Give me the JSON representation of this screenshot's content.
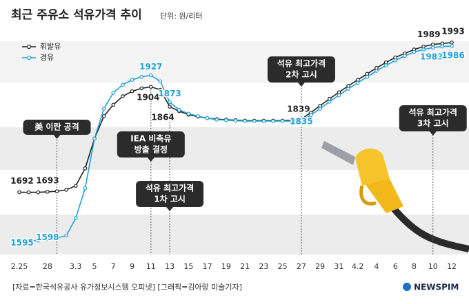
{
  "chart_data": {
    "type": "line",
    "title": "최근 주유소 석유가격 추이",
    "subtitle": "단위: 원/리터",
    "source": "[자료=한국석유공사 유가정보시스템 오피넷] [그래픽=김아랑 미술기자]",
    "brand": "NEWSPIM",
    "categories": [
      "2.25",
      null,
      null,
      "28",
      null,
      null,
      "3.3",
      null,
      "5",
      null,
      "7",
      null,
      "9",
      null,
      "11",
      null,
      "13",
      null,
      "15",
      null,
      "17",
      null,
      "19",
      null,
      "21",
      null,
      "23",
      null,
      "25",
      null,
      "27",
      null,
      "29",
      null,
      "31",
      null,
      "4.2",
      null,
      "4",
      null,
      "6",
      null,
      "8",
      null,
      "10",
      null,
      "12"
    ],
    "ylim": [
      1567,
      2037
    ],
    "series": [
      {
        "name": "휘발유",
        "color": "#222222",
        "values": [
          1692,
          1692,
          1692,
          1693,
          1694,
          1697,
          1705,
          1740,
          1800,
          1845,
          1868,
          1885,
          1895,
          1901,
          1904,
          1898,
          1864,
          1855,
          1848,
          1844,
          1841,
          1839,
          1838,
          1837,
          1836,
          1836,
          1836,
          1836,
          1836,
          1837,
          1839,
          1852,
          1866,
          1880,
          1893,
          1906,
          1918,
          1930,
          1942,
          1953,
          1963,
          1971,
          1979,
          1985,
          1989,
          1991,
          1993
        ]
      },
      {
        "name": "경유",
        "color": "#1ea0d8",
        "values": [
          1595,
          1595,
          1595,
          1598,
          1600,
          1605,
          1640,
          1700,
          1800,
          1860,
          1892,
          1908,
          1918,
          1924,
          1927,
          1915,
          1873,
          1858,
          1850,
          1845,
          1841,
          1838,
          1837,
          1836,
          1835,
          1835,
          1835,
          1835,
          1835,
          1835,
          1835,
          1847,
          1860,
          1874,
          1887,
          1900,
          1912,
          1924,
          1936,
          1947,
          1957,
          1966,
          1974,
          1979,
          1983,
          1985,
          1986
        ]
      }
    ],
    "annotations": [
      {
        "text": [
          "美 이란 공격"
        ]
      },
      {
        "text": [
          "IEA 비축유",
          "방출 결정"
        ]
      },
      {
        "text": [
          "석유 최고가격",
          "1차 고시"
        ]
      },
      {
        "text": [
          "석유 최고가격",
          "2차 고시"
        ]
      },
      {
        "text": [
          "석유 최고가격",
          "3차 고시"
        ]
      }
    ]
  }
}
